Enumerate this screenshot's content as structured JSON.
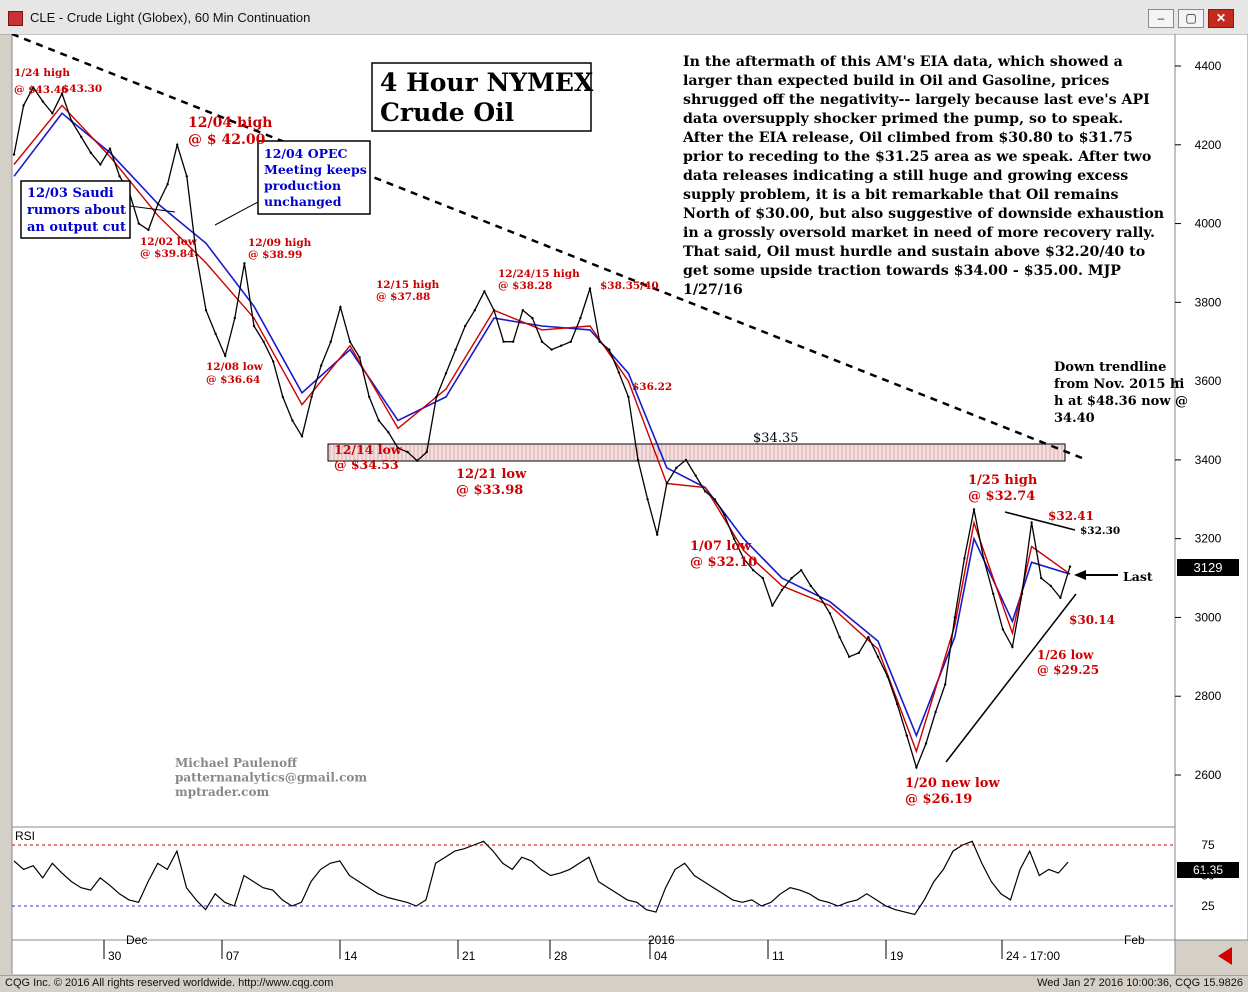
{
  "window": {
    "title": "CLE - Crude Light (Globex), 60 Min Continuation",
    "minimize": "–",
    "maximize": "▢",
    "close": "✕"
  },
  "status_bar": {
    "left": "CQG Inc. © 2016 All rights reserved worldwide. http://www.cqg.com",
    "right": "Wed Jan 27 2016 10:00:36, CQG 15.9826"
  },
  "colors": {
    "price": "#000000",
    "ma_fast": "#cc0000",
    "ma_slow": "#1a1acc",
    "annotation_red": "#cc0000",
    "annotation_blue": "#0000cc",
    "rsi_band": "#cc0000",
    "rsi_low_band": "#3333cc",
    "price_box": "#000000",
    "rsi_box": "#000000"
  },
  "chart_data": [
    {
      "type": "line",
      "title": "4 Hour NYMEX Crude Oil",
      "ylim": [
        2550,
        4500
      ],
      "yticks": [
        2600,
        2800,
        3000,
        3200,
        3400,
        3600,
        3800,
        4000,
        4200,
        4400
      ],
      "x_ticks": [
        "30",
        "07",
        "14",
        "21",
        "28",
        "04",
        "11",
        "19",
        "24 - 17:00"
      ],
      "x_months": [
        "Dec",
        "2016",
        "Feb"
      ],
      "last_value": "3129",
      "last_label": "Last",
      "price_points": [
        [
          0,
          4175
        ],
        [
          1,
          4300
        ],
        [
          2,
          4346
        ],
        [
          3,
          4310
        ],
        [
          4,
          4280
        ],
        [
          5,
          4330
        ],
        [
          6,
          4260
        ],
        [
          7,
          4220
        ],
        [
          8,
          4180
        ],
        [
          9,
          4150
        ],
        [
          10,
          4190
        ],
        [
          11,
          4120
        ],
        [
          12,
          4080
        ],
        [
          13,
          4000
        ],
        [
          14,
          3984
        ],
        [
          15,
          4050
        ],
        [
          16,
          4100
        ],
        [
          17,
          4200
        ],
        [
          18,
          4120
        ],
        [
          19,
          3920
        ],
        [
          20,
          3780
        ],
        [
          21,
          3720
        ],
        [
          22,
          3664
        ],
        [
          23,
          3760
        ],
        [
          24,
          3899
        ],
        [
          25,
          3740
        ],
        [
          26,
          3700
        ],
        [
          27,
          3650
        ],
        [
          28,
          3560
        ],
        [
          29,
          3500
        ],
        [
          30,
          3460
        ],
        [
          31,
          3560
        ],
        [
          32,
          3640
        ],
        [
          33,
          3700
        ],
        [
          34,
          3788
        ],
        [
          35,
          3700
        ],
        [
          36,
          3660
        ],
        [
          37,
          3560
        ],
        [
          38,
          3500
        ],
        [
          39,
          3470
        ],
        [
          40,
          3430
        ],
        [
          41,
          3420
        ],
        [
          42,
          3398
        ],
        [
          43,
          3420
        ],
        [
          44,
          3560
        ],
        [
          45,
          3620
        ],
        [
          46,
          3680
        ],
        [
          47,
          3740
        ],
        [
          48,
          3780
        ],
        [
          49,
          3828
        ],
        [
          50,
          3780
        ],
        [
          51,
          3700
        ],
        [
          52,
          3700
        ],
        [
          53,
          3780
        ],
        [
          54,
          3760
        ],
        [
          55,
          3700
        ],
        [
          56,
          3680
        ],
        [
          57,
          3690
        ],
        [
          58,
          3700
        ],
        [
          59,
          3760
        ],
        [
          60,
          3835
        ],
        [
          61,
          3700
        ],
        [
          62,
          3680
        ],
        [
          63,
          3622
        ],
        [
          64,
          3560
        ],
        [
          65,
          3400
        ],
        [
          66,
          3300
        ],
        [
          67,
          3210
        ],
        [
          68,
          3340
        ],
        [
          69,
          3380
        ],
        [
          70,
          3400
        ],
        [
          71,
          3360
        ],
        [
          72,
          3320
        ],
        [
          73,
          3300
        ],
        [
          74,
          3260
        ],
        [
          75,
          3200
        ],
        [
          76,
          3150
        ],
        [
          77,
          3120
        ],
        [
          78,
          3100
        ],
        [
          79,
          3030
        ],
        [
          80,
          3070
        ],
        [
          81,
          3100
        ],
        [
          82,
          3120
        ],
        [
          83,
          3080
        ],
        [
          84,
          3050
        ],
        [
          85,
          3010
        ],
        [
          86,
          2950
        ],
        [
          87,
          2900
        ],
        [
          88,
          2910
        ],
        [
          89,
          2950
        ],
        [
          90,
          2900
        ],
        [
          91,
          2850
        ],
        [
          92,
          2780
        ],
        [
          93,
          2700
        ],
        [
          94,
          2619
        ],
        [
          95,
          2680
        ],
        [
          96,
          2760
        ],
        [
          97,
          2830
        ],
        [
          98,
          3000
        ],
        [
          99,
          3150
        ],
        [
          100,
          3274
        ],
        [
          101,
          3150
        ],
        [
          102,
          3060
        ],
        [
          103,
          2970
        ],
        [
          104,
          2925
        ],
        [
          105,
          3060
        ],
        [
          106,
          3241
        ],
        [
          107,
          3100
        ],
        [
          108,
          3080
        ],
        [
          109,
          3050
        ],
        [
          110,
          3129
        ]
      ],
      "ma_fast_points": [
        [
          0,
          4150
        ],
        [
          5,
          4300
        ],
        [
          10,
          4170
        ],
        [
          15,
          4020
        ],
        [
          20,
          3900
        ],
        [
          25,
          3760
        ],
        [
          30,
          3540
        ],
        [
          35,
          3690
        ],
        [
          40,
          3480
        ],
        [
          45,
          3580
        ],
        [
          50,
          3780
        ],
        [
          55,
          3730
        ],
        [
          60,
          3740
        ],
        [
          64,
          3600
        ],
        [
          68,
          3340
        ],
        [
          72,
          3330
        ],
        [
          76,
          3170
        ],
        [
          80,
          3080
        ],
        [
          85,
          3030
        ],
        [
          90,
          2920
        ],
        [
          94,
          2660
        ],
        [
          98,
          2980
        ],
        [
          100,
          3240
        ],
        [
          104,
          2960
        ],
        [
          106,
          3180
        ],
        [
          110,
          3110
        ]
      ],
      "ma_slow_points": [
        [
          0,
          4120
        ],
        [
          5,
          4280
        ],
        [
          10,
          4180
        ],
        [
          15,
          4050
        ],
        [
          20,
          3950
        ],
        [
          25,
          3790
        ],
        [
          30,
          3570
        ],
        [
          35,
          3680
        ],
        [
          40,
          3500
        ],
        [
          45,
          3560
        ],
        [
          50,
          3760
        ],
        [
          55,
          3740
        ],
        [
          60,
          3730
        ],
        [
          64,
          3620
        ],
        [
          68,
          3380
        ],
        [
          72,
          3330
        ],
        [
          76,
          3200
        ],
        [
          80,
          3100
        ],
        [
          85,
          3040
        ],
        [
          90,
          2940
        ],
        [
          94,
          2700
        ],
        [
          98,
          2950
        ],
        [
          100,
          3200
        ],
        [
          104,
          2990
        ],
        [
          106,
          3140
        ],
        [
          110,
          3110
        ]
      ],
      "trendline_label": "Down trendline from Nov. 2015 high at $48.36 now @$34.40",
      "resistance_label": "$34.35",
      "text_box": "In the aftermath of this AM's EIA data, which showed a larger than expected build in Oil and Gasoline, prices shrugged off the negativity-- largely because last eve's API data oversupply shocker primed the pump, so to speak. After the EIA release, Oil climbed from $30.80 to $31.75 prior to receding to the $31.25 area as we speak. After two data releases indicating a still huge and growing excess supply problem, it is a bit remarkable that Oil remains North of $30.00, but also suggestive of downside exhaustion in a grossly oversold market in need of more recovery rally. That said, Oil must hurdle and sustain above $32.20/40 to get some upside traction towards $34.00 - $35.00. MJP 1/27/16",
      "author": [
        "Michael Paulenoff",
        "patternanalytics@gmail.com",
        "mptrader.com"
      ],
      "annotations": {
        "a1": [
          "1/24 high",
          "@ $43.46"
        ],
        "a2": [
          "$43.30"
        ],
        "a3": [
          "12/04 high",
          "@ $ 42.00"
        ],
        "a4": [
          "12/02 low",
          "@ $39.84"
        ],
        "a5": [
          "12/09 high",
          "@ $38.99"
        ],
        "a6": [
          "12/08 low",
          "@ $36.64"
        ],
        "a7": [
          "12/15 high",
          "@ $37.88"
        ],
        "a8": [
          "12/24/15 high",
          "@ $38.28"
        ],
        "a9": [
          "$38.35/40"
        ],
        "a10": [
          "$36.22"
        ],
        "a11": [
          "12/14 low",
          "@ $34.53"
        ],
        "a12": [
          "12/21 low",
          "@ $33.98"
        ],
        "a13": [
          "1/07 low",
          "@ $32.10"
        ],
        "a14": [
          "1/25 high",
          "@ $32.74"
        ],
        "a15": [
          "$32.41"
        ],
        "a16": [
          "$32.30"
        ],
        "a17": [
          "$30.14"
        ],
        "a18": [
          "1/26 low",
          "@ $29.25"
        ],
        "a19": [
          "1/20 new low",
          "@ $26.19"
        ]
      },
      "callouts": {
        "saudi": [
          "12/03 Saudi",
          "rumors about",
          "an output cut"
        ],
        "opec": [
          "12/04 OPEC",
          "Meeting keeps",
          "production",
          "unchanged"
        ]
      }
    },
    {
      "type": "line",
      "title": "RSI",
      "ylim": [
        0,
        100
      ],
      "yticks": [
        25,
        50,
        75
      ],
      "bands": [
        25,
        75
      ],
      "last_value": "61.35",
      "values": [
        62,
        55,
        58,
        48,
        60,
        52,
        45,
        40,
        38,
        48,
        42,
        35,
        30,
        28,
        45,
        60,
        55,
        70,
        40,
        30,
        22,
        35,
        28,
        25,
        50,
        45,
        40,
        38,
        30,
        25,
        28,
        45,
        55,
        60,
        62,
        50,
        45,
        40,
        35,
        32,
        30,
        28,
        25,
        30,
        60,
        65,
        70,
        72,
        75,
        78,
        70,
        60,
        55,
        65,
        62,
        55,
        50,
        52,
        55,
        60,
        65,
        45,
        40,
        35,
        30,
        28,
        22,
        20,
        40,
        55,
        60,
        50,
        45,
        40,
        35,
        30,
        28,
        30,
        25,
        28,
        35,
        40,
        38,
        35,
        30,
        28,
        25,
        28,
        30,
        35,
        30,
        25,
        22,
        20,
        18,
        30,
        45,
        55,
        70,
        75,
        78,
        60,
        45,
        35,
        30,
        55,
        70,
        50,
        55,
        52,
        61
      ]
    }
  ]
}
